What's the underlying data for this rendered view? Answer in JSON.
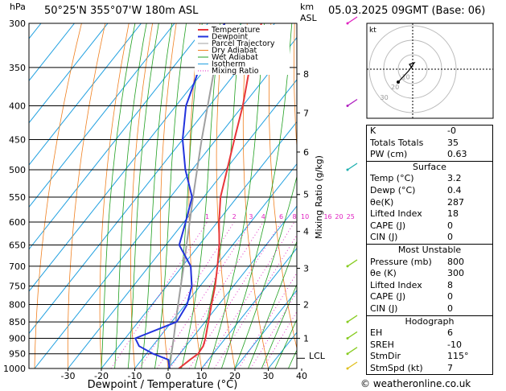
{
  "header": {
    "pressure_unit": "hPa",
    "location": "50°25'N  355°07'W  180m  ASL",
    "height_unit_top": "km",
    "height_unit_bottom": "ASL",
    "datetime": "05.03.2025  09GMT  (Base: 06)"
  },
  "footer": "© weatheronline.co.uk",
  "mixing_ratio_axis_label": "Mixing Ratio (g/kg)",
  "lcl_label": "LCL",
  "hodograph": {
    "unit": "kt",
    "ring_labels": [
      "10",
      "20",
      "30"
    ]
  },
  "indices": {
    "top": [
      {
        "label": "K",
        "value": "-0"
      },
      {
        "label": "Totals Totals",
        "value": "35"
      },
      {
        "label": "PW (cm)",
        "value": "0.63"
      }
    ],
    "surface": {
      "title": "Surface",
      "rows": [
        {
          "label": "Temp (°C)",
          "value": "3.2"
        },
        {
          "label": "Dewp (°C)",
          "value": "0.4"
        },
        {
          "label": "θe(K)",
          "value": "287"
        },
        {
          "label": "Lifted Index",
          "value": "18"
        },
        {
          "label": "CAPE (J)",
          "value": "0"
        },
        {
          "label": "CIN (J)",
          "value": "0"
        }
      ]
    },
    "most_unstable": {
      "title": "Most Unstable",
      "rows": [
        {
          "label": "Pressure (mb)",
          "value": "800"
        },
        {
          "label": "θe (K)",
          "value": "300"
        },
        {
          "label": "Lifted Index",
          "value": "8"
        },
        {
          "label": "CAPE (J)",
          "value": "0"
        },
        {
          "label": "CIN (J)",
          "value": "0"
        }
      ]
    },
    "hodograph": {
      "title": "Hodograph",
      "rows": [
        {
          "label": "EH",
          "value": "6"
        },
        {
          "label": "SREH",
          "value": "-10"
        },
        {
          "label": "StmDir",
          "value": "115°"
        },
        {
          "label": "StmSpd (kt)",
          "value": "7"
        }
      ]
    }
  },
  "colors": {
    "temperature": "#e8373a",
    "dewpoint": "#2233dd",
    "parcel": "#a0a0a0",
    "dry_adiabat": "#f08020",
    "wet_adiabat": "#20a020",
    "isotherm": "#20a0e0",
    "mixing_ratio": "#e020c0"
  },
  "chart_data": {
    "type": "line",
    "title": "",
    "xlabel": "Dewpoint / Temperature (°C)",
    "ylabel": "hPa",
    "xlim": [
      -40,
      40
    ],
    "x_ticks": [
      -30,
      -20,
      -10,
      0,
      10,
      20,
      30,
      40
    ],
    "pressure_levels": [
      300,
      350,
      400,
      450,
      500,
      550,
      600,
      650,
      700,
      750,
      800,
      850,
      900,
      950,
      1000
    ],
    "height_km_ticks": [
      {
        "label": "1",
        "p": 900
      },
      {
        "label": "2",
        "p": 800
      },
      {
        "label": "3",
        "p": 705
      },
      {
        "label": "4",
        "p": 620
      },
      {
        "label": "5",
        "p": 545
      },
      {
        "label": "6",
        "p": 470
      },
      {
        "label": "7",
        "p": 410
      },
      {
        "label": "8",
        "p": 358
      }
    ],
    "mixing_ratio_labels": [
      "1",
      "2",
      "3",
      "4",
      "6",
      "8",
      "10",
      "16",
      "20",
      "25"
    ],
    "legend": [
      "Temperature",
      "Dewpoint",
      "Parcel Trajectory",
      "Dry Adiabat",
      "Wet Adiabat",
      "Isotherm",
      "Mixing Ratio"
    ],
    "legend_position": "top-left",
    "series": [
      {
        "name": "Temperature",
        "p": [
          1000,
          970,
          950,
          925,
          900,
          850,
          800,
          750,
          700,
          650,
          600,
          550,
          500,
          450,
          400,
          350,
          300
        ],
        "t": [
          3.2,
          4.5,
          5.5,
          5.2,
          4.0,
          1.0,
          -2.2,
          -5.5,
          -9.5,
          -14.0,
          -19.5,
          -25.0,
          -29.5,
          -34.5,
          -40.0,
          -47.0,
          -54.0
        ]
      },
      {
        "name": "Dewpoint",
        "p": [
          1000,
          970,
          950,
          925,
          900,
          850,
          800,
          750,
          700,
          650,
          600,
          550,
          500,
          450,
          400,
          350,
          300
        ],
        "t": [
          0.4,
          -2.0,
          -8.0,
          -14.0,
          -17.0,
          -8.5,
          -9.5,
          -12.5,
          -17.5,
          -26.0,
          -29.5,
          -33.5,
          -42.0,
          -50.0,
          -57.0,
          -62.0,
          -65.0
        ]
      },
      {
        "name": "Parcel Trajectory",
        "p": [
          1000,
          950,
          900,
          850,
          800,
          750,
          700,
          650,
          600,
          550,
          500,
          450,
          400,
          350,
          300
        ],
        "t": [
          0.4,
          -2.5,
          -5.5,
          -8.8,
          -12.2,
          -15.8,
          -19.6,
          -23.8,
          -28.3,
          -33.2,
          -38.5,
          -44.3,
          -50.5,
          -57.5,
          -65.0
        ]
      }
    ],
    "wind_barbs_p": [
      300,
      400,
      500,
      700,
      850,
      900,
      950,
      1000
    ]
  }
}
